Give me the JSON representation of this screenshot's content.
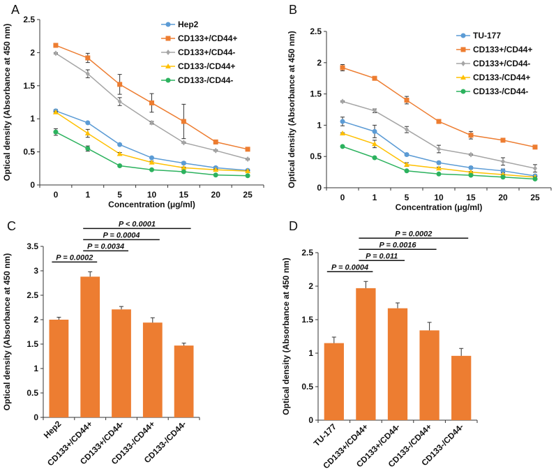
{
  "chart_data": [
    {
      "panel": "A",
      "type": "line",
      "xlabel": "Concentration (μg/ml)",
      "ylabel": "Optical density (Absorbance at 450 nm)",
      "categories": [
        "0",
        "1",
        "5",
        "10",
        "15",
        "20",
        "25"
      ],
      "ylim": [
        0,
        2.5
      ],
      "yticks": [
        "0",
        "0.5",
        "1",
        "1.5",
        "2",
        "2.5"
      ],
      "legend": "top-right",
      "series": [
        {
          "name": "Hep2",
          "color": "#5b9bd5",
          "marker": "circle",
          "values": [
            1.12,
            0.94,
            0.61,
            0.41,
            0.33,
            0.26,
            0.22
          ],
          "err": [
            0.02,
            0.01,
            0.01,
            0.01,
            0.02,
            0.02,
            0.01
          ]
        },
        {
          "name": "CD133+/CD44+",
          "color": "#ed7d31",
          "marker": "square",
          "values": [
            2.11,
            1.92,
            1.52,
            1.24,
            0.96,
            0.65,
            0.54
          ],
          "err": [
            0.01,
            0.07,
            0.15,
            0.14,
            0.26,
            0.03,
            0.01
          ]
        },
        {
          "name": "CD133+/CD44-",
          "color": "#a5a5a5",
          "marker": "diamond",
          "values": [
            1.99,
            1.68,
            1.26,
            0.94,
            0.64,
            0.52,
            0.39
          ],
          "err": [
            0.01,
            0.06,
            0.06,
            0.02,
            0.01,
            0.01,
            0.01
          ]
        },
        {
          "name": "CD133-/CD44+",
          "color": "#ffc000",
          "marker": "triangle",
          "values": [
            1.1,
            0.78,
            0.47,
            0.34,
            0.26,
            0.23,
            0.21
          ],
          "err": [
            0.01,
            0.06,
            0.02,
            0.02,
            0.01,
            0.01,
            0.01
          ]
        },
        {
          "name": "CD133-/CD44-",
          "color": "#2cb25e",
          "marker": "circle",
          "values": [
            0.8,
            0.55,
            0.29,
            0.23,
            0.2,
            0.15,
            0.14
          ],
          "err": [
            0.05,
            0.04,
            0.01,
            0.01,
            0.01,
            0.01,
            0.01
          ]
        }
      ]
    },
    {
      "panel": "B",
      "type": "line",
      "xlabel": "Concentration (μg/ml)",
      "ylabel": "Optical density (Absorbance at 450 nm)",
      "categories": [
        "0",
        "1",
        "5",
        "10",
        "15",
        "20",
        "25"
      ],
      "ylim": [
        0,
        2.5
      ],
      "yticks": [
        "0",
        "0.5",
        "1",
        "1.5",
        "2",
        "2.5"
      ],
      "legend": "top-right",
      "series": [
        {
          "name": "TU-177",
          "color": "#5b9bd5",
          "marker": "circle",
          "values": [
            1.06,
            0.9,
            0.53,
            0.4,
            0.32,
            0.27,
            0.19
          ],
          "err": [
            0.07,
            0.1,
            0.02,
            0.02,
            0.02,
            0.03,
            0.02
          ]
        },
        {
          "name": "CD133+/CD44+",
          "color": "#ed7d31",
          "marker": "square",
          "values": [
            1.92,
            1.75,
            1.4,
            1.06,
            0.84,
            0.76,
            0.65
          ],
          "err": [
            0.05,
            0.01,
            0.06,
            0.01,
            0.06,
            0.01,
            0.01
          ]
        },
        {
          "name": "CD133+/CD44-",
          "color": "#a5a5a5",
          "marker": "diamond",
          "values": [
            1.38,
            1.23,
            0.93,
            0.62,
            0.53,
            0.42,
            0.31
          ],
          "err": [
            0.01,
            0.03,
            0.05,
            0.06,
            0.01,
            0.06,
            0.06
          ]
        },
        {
          "name": "CD133-/CD44+",
          "color": "#ffc000",
          "marker": "triangle",
          "values": [
            0.87,
            0.7,
            0.37,
            0.31,
            0.25,
            0.21,
            0.17
          ],
          "err": [
            0.01,
            0.06,
            0.03,
            0.02,
            0.01,
            0.01,
            0.01
          ]
        },
        {
          "name": "CD133-/CD44-",
          "color": "#2cb25e",
          "marker": "circle",
          "values": [
            0.66,
            0.48,
            0.27,
            0.22,
            0.2,
            0.17,
            0.14
          ],
          "err": [
            0.01,
            0.01,
            0.01,
            0.01,
            0.01,
            0.01,
            0.01
          ]
        }
      ]
    },
    {
      "panel": "C",
      "type": "bar",
      "ylabel": "Optical density (Absorbance at 450 nm)",
      "color": "#ed7d31",
      "categories": [
        "Hep2",
        "CD133+/CD44+",
        "CD133+/CD44-",
        "CD133-/CD44+",
        "CD133-/CD44-"
      ],
      "values": [
        2.0,
        2.88,
        2.21,
        1.94,
        1.47
      ],
      "err": [
        0.05,
        0.1,
        0.06,
        0.1,
        0.05
      ],
      "ylim": [
        0,
        3.5
      ],
      "yticks": [
        "0",
        "0.5",
        "1",
        "1.5",
        "2",
        "2.5",
        "3",
        "3.5"
      ],
      "annotations": [
        {
          "from": 0,
          "to": 1,
          "text": "P = 0.0002"
        },
        {
          "from": 1,
          "to": 2,
          "text": "P = 0.0034"
        },
        {
          "from": 1,
          "to": 3,
          "text": "P = 0.0004"
        },
        {
          "from": 1,
          "to": 4,
          "text": "P < 0.0001"
        }
      ]
    },
    {
      "panel": "D",
      "type": "bar",
      "ylabel": "Optical density (Absorbance at 450 nm)",
      "color": "#ed7d31",
      "categories": [
        "TU-177",
        "CD133+/CD44+",
        "CD133+/CD44-",
        "CD133-/CD44+",
        "CD133-/CD44-"
      ],
      "values": [
        1.15,
        1.97,
        1.67,
        1.34,
        0.96
      ],
      "err": [
        0.09,
        0.1,
        0.08,
        0.12,
        0.11
      ],
      "ylim": [
        0,
        2.5
      ],
      "yticks": [
        "0",
        "0.5",
        "1",
        "1.5",
        "2",
        "2.5"
      ],
      "annotations": [
        {
          "from": 0,
          "to": 1,
          "text": "P = 0.0004"
        },
        {
          "from": 1,
          "to": 2,
          "text": "P = 0.011"
        },
        {
          "from": 1,
          "to": 3,
          "text": "P = 0.0016"
        },
        {
          "from": 1,
          "to": 4,
          "text": "P = 0.0002"
        }
      ]
    }
  ]
}
